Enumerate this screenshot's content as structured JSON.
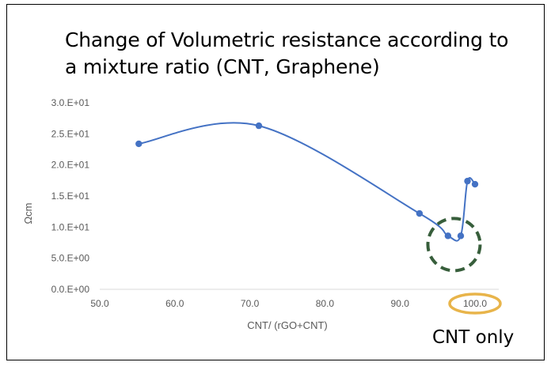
{
  "title_lines": [
    "Change of Volumetric resistance according to",
    "a mixture ratio (CNT, Graphene)"
  ],
  "annotation": "CNT only",
  "colors": {
    "line": "#4472C4",
    "circle": "#375E3B",
    "oval": "#E8B44A",
    "axis": "#D9D9D9",
    "text": "#595959"
  },
  "chart_data": {
    "type": "line",
    "title": "Change of Volumetric resistance according to a mixture ratio (CNT, Graphene)",
    "xlabel": "CNT/ (rGO+CNT)",
    "ylabel": "Ωcm",
    "xlim": [
      50,
      100
    ],
    "ylim": [
      0,
      30
    ],
    "x_ticks": [
      "50.0",
      "60.0",
      "70.0",
      "80.0",
      "90.0",
      "100.0"
    ],
    "y_ticks": [
      "0.0.E+00",
      "5.0.E+00",
      "1.0.E+01",
      "1.5.E+01",
      "2.0.E+01",
      "2.5.E+01",
      "3.0.E+01"
    ],
    "smooth": true,
    "series": [
      {
        "name": "Volumetric resistance",
        "x": [
          55.2,
          71.2,
          92.6,
          96.4,
          98.1,
          99.0,
          100.0
        ],
        "y": [
          23.4,
          26.3,
          12.2,
          8.6,
          8.6,
          17.4,
          16.9
        ]
      }
    ],
    "highlights": [
      "CNT only"
    ]
  }
}
